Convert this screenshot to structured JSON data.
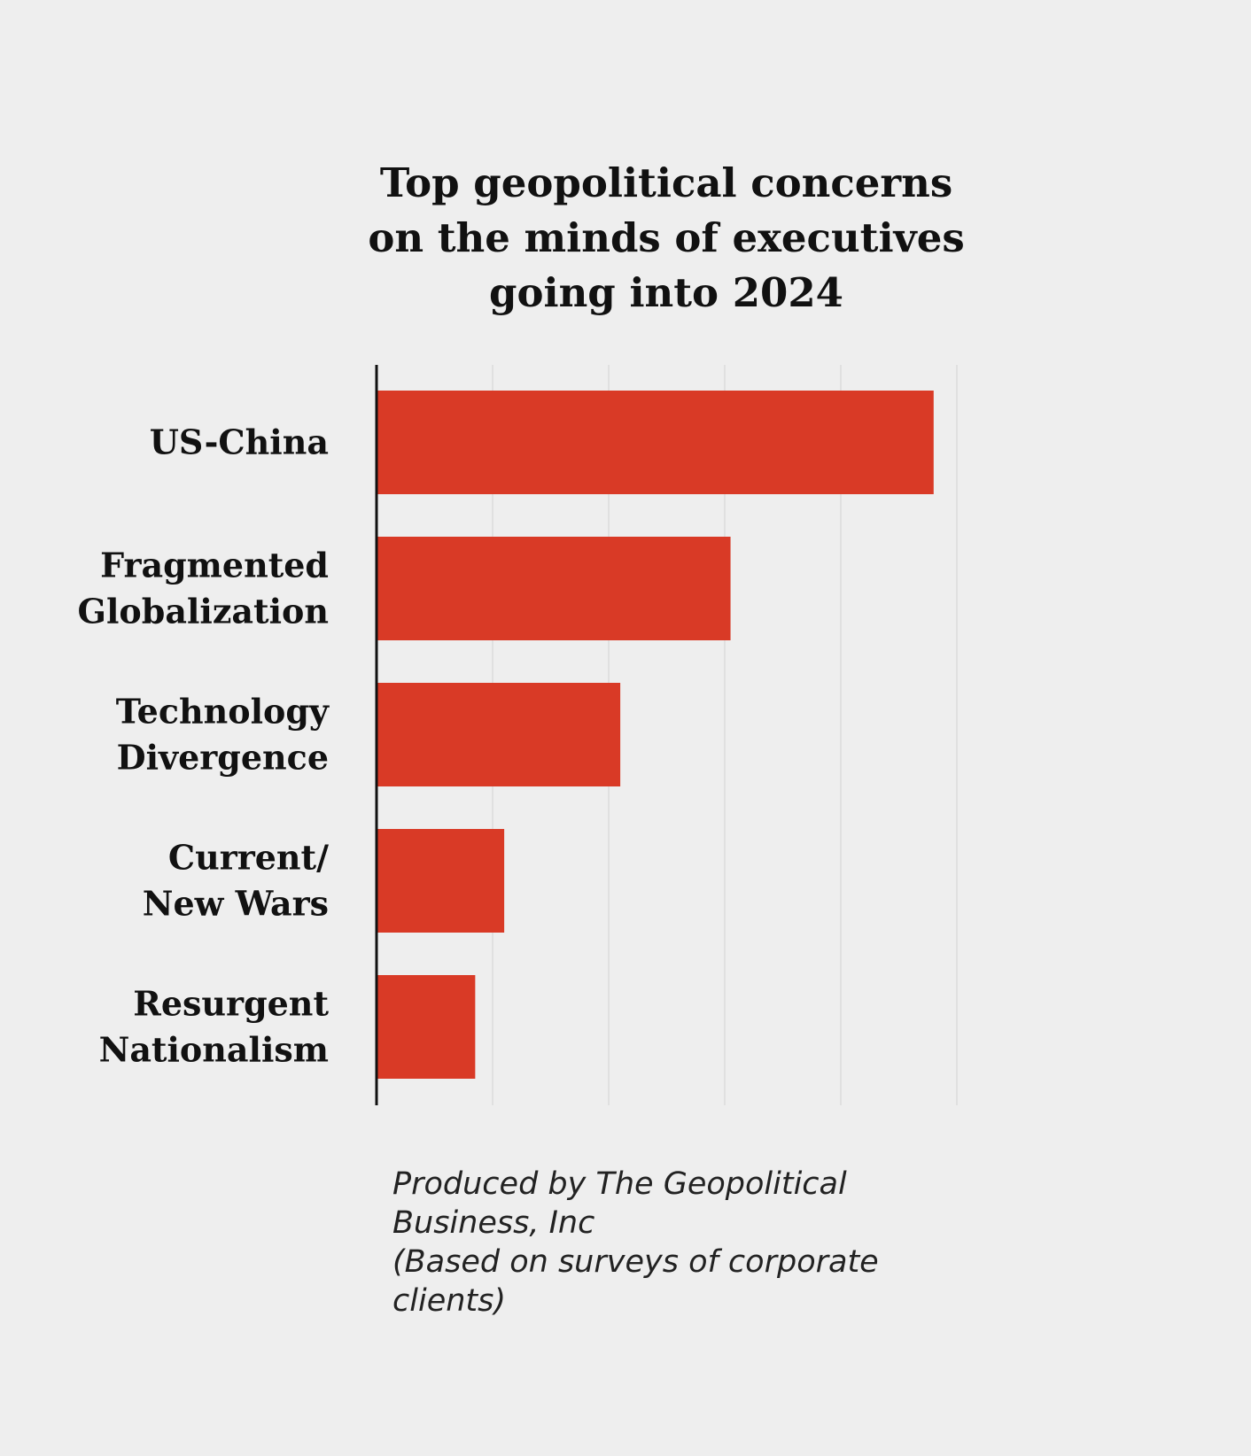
{
  "chart_data": {
    "type": "bar",
    "orientation": "horizontal",
    "title_lines": [
      "Top geopolitical concerns",
      "on the minds of executives",
      "going into 2024"
    ],
    "categories": [
      {
        "id": "us-china",
        "lines": [
          "US-China"
        ]
      },
      {
        "id": "fragmented-globalization",
        "lines": [
          "Fragmented",
          "Globalization"
        ]
      },
      {
        "id": "technology-divergence",
        "lines": [
          "Technology",
          "Divergence"
        ]
      },
      {
        "id": "current-new-wars",
        "lines": [
          "Current/",
          "New Wars"
        ]
      },
      {
        "id": "resurgent-nationalism",
        "lines": [
          "Resurgent",
          "Nationalism"
        ]
      }
    ],
    "values": [
      4.8,
      3.05,
      2.1,
      1.1,
      0.85
    ],
    "xlim": [
      0,
      5
    ],
    "gridlines": [
      1,
      2,
      3,
      4,
      5
    ],
    "show_tick_labels": false,
    "bar_color": "#d93a26",
    "axis_color": "#111111",
    "grid_color": "#dcdcdc",
    "footnote_lines": [
      "Produced by The Geopolitical",
      "Business, Inc",
      "(Based on surveys of corporate",
      "clients)"
    ]
  }
}
